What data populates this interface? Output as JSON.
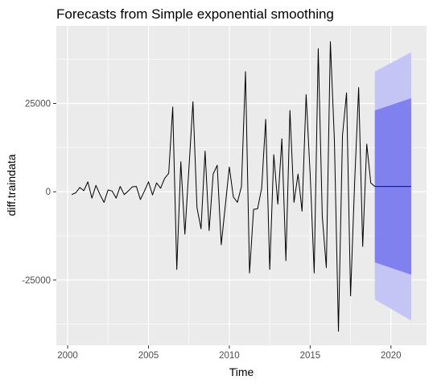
{
  "chart_data": {
    "type": "line",
    "title": "Forecasts from Simple exponential smoothing",
    "xlabel": "Time",
    "ylabel": "diff.traindata",
    "xlim": [
      1999.3,
      2022.2
    ],
    "ylim": [
      -43500,
      47000
    ],
    "x_ticks": [
      2000,
      2005,
      2010,
      2015,
      2020
    ],
    "x_tick_labels": [
      "2000",
      "2005",
      "2010",
      "2015",
      "2020"
    ],
    "y_ticks": [
      -25000,
      0,
      25000
    ],
    "y_tick_labels": [
      "-25000",
      "0",
      "25000"
    ],
    "grid": true,
    "legend": "none",
    "colors": {
      "panel_background": "#ebebeb",
      "grid_major": "#ffffff",
      "series_line": "#000000",
      "forecast_line": "#0000cc",
      "interval_95": "#c4c4f5",
      "interval_80": "#8080ee"
    },
    "series": [
      {
        "x": [
          2000.25,
          2000.5,
          2000.75,
          2001.0,
          2001.25,
          2001.5,
          2001.75,
          2002.0,
          2002.25,
          2002.5,
          2002.75,
          2003.0,
          2003.25,
          2003.5,
          2003.75,
          2004.0,
          2004.25,
          2004.5,
          2004.75,
          2005.0,
          2005.25,
          2005.5,
          2005.75,
          2006.0,
          2006.25,
          2006.5,
          2006.75,
          2007.0,
          2007.25,
          2007.5,
          2007.75,
          2008.0,
          2008.25,
          2008.5,
          2008.75,
          2009.0,
          2009.25,
          2009.5,
          2009.75,
          2010.0,
          2010.25,
          2010.5,
          2010.75,
          2011.0,
          2011.25,
          2011.5,
          2011.75,
          2012.0,
          2012.25,
          2012.5,
          2012.75,
          2013.0,
          2013.25,
          2013.5,
          2013.75,
          2014.0,
          2014.25,
          2014.5,
          2014.75,
          2015.0,
          2015.25,
          2015.5,
          2015.75,
          2016.0,
          2016.25,
          2016.5,
          2016.75,
          2017.0,
          2017.25,
          2017.5,
          2017.75,
          2018.0,
          2018.25,
          2018.5,
          2018.75,
          2019.0
        ],
        "values": [
          -800,
          -300,
          1200,
          300,
          2800,
          -1800,
          1800,
          -800,
          -3000,
          500,
          200,
          -1800,
          1500,
          -800,
          200,
          1400,
          1500,
          -2200,
          200,
          2800,
          -900,
          2500,
          1000,
          3800,
          5200,
          24000,
          -22000,
          8500,
          -12000,
          6500,
          25500,
          -4500,
          -10500,
          11500,
          -11000,
          5000,
          7500,
          -15000,
          -4000,
          7000,
          -1500,
          -3000,
          1500,
          34000,
          -23000,
          -5000,
          -4800,
          1000,
          20500,
          -22000,
          10500,
          -3500,
          15000,
          -19500,
          23000,
          -3000,
          5000,
          -5500,
          27500,
          5000,
          -23000,
          40500,
          -7000,
          -21500,
          42500,
          14500,
          -39500,
          16000,
          28000,
          -29500,
          2500,
          29500,
          -15500,
          13500,
          2500,
          1500
        ]
      },
      {
        "x": [
          2019.0,
          2021.25
        ],
        "values": [
          1500,
          1500
        ]
      }
    ],
    "intervals": [
      {
        "level": "95",
        "x": [
          2019.0,
          2021.25
        ],
        "lower": [
          -30500,
          -36500
        ],
        "upper": [
          34000,
          39500
        ]
      },
      {
        "level": "80",
        "x": [
          2019.0,
          2021.25
        ],
        "lower": [
          -20000,
          -23500
        ],
        "upper": [
          23000,
          26500
        ]
      }
    ]
  }
}
